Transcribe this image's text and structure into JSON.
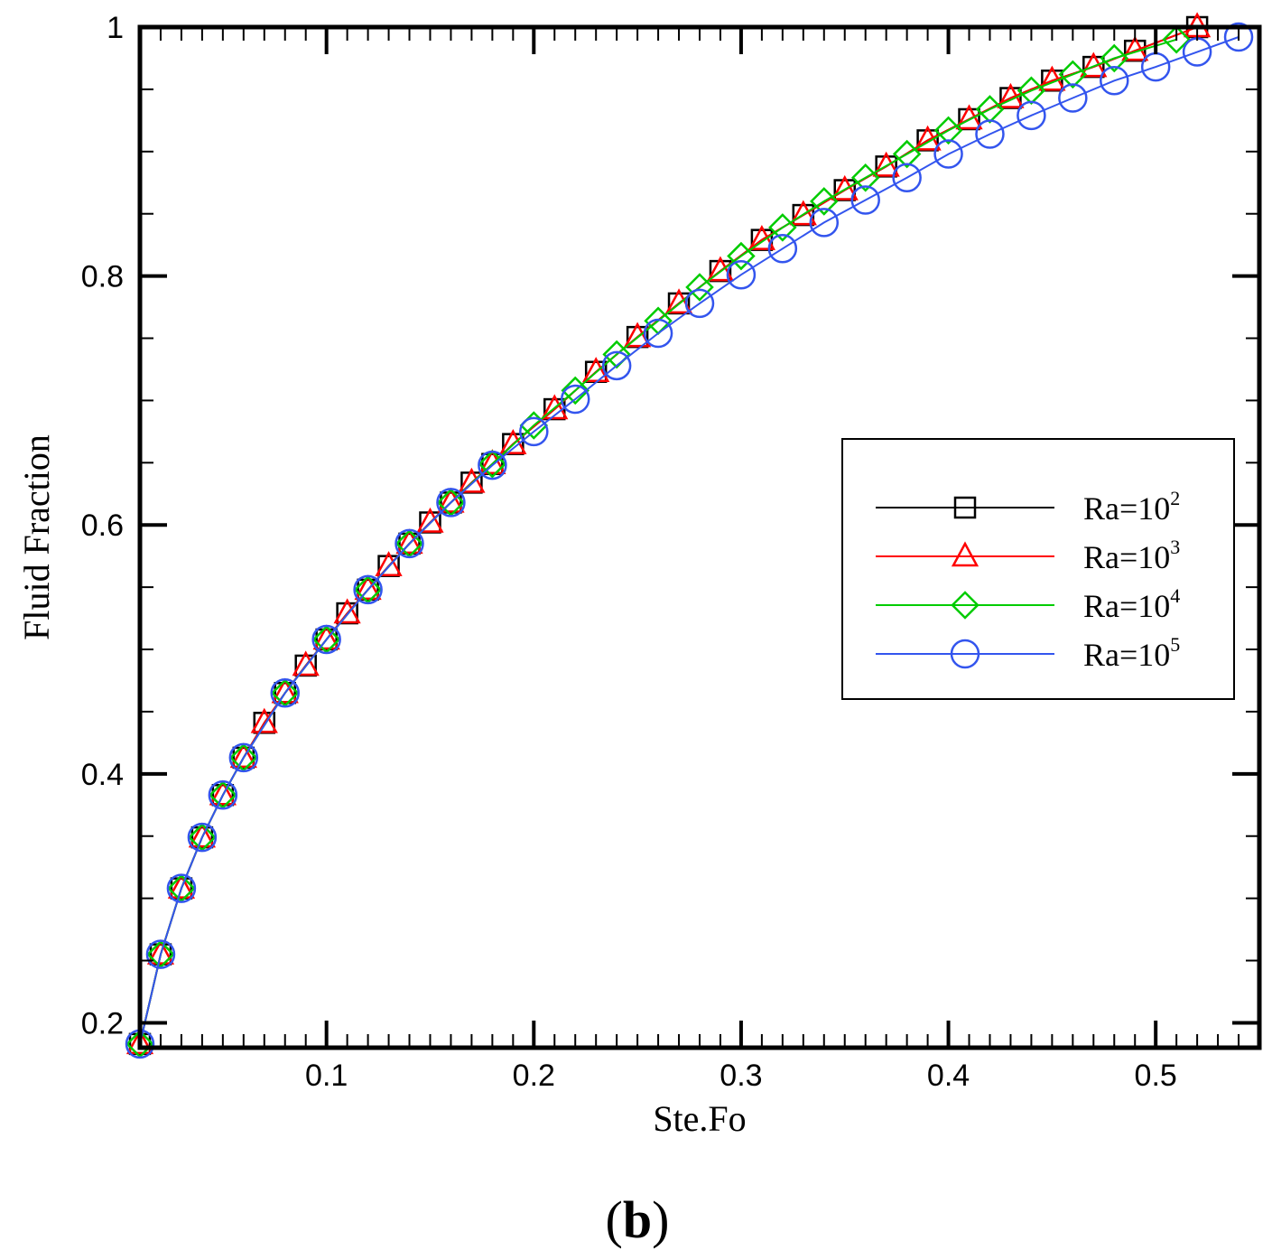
{
  "chart_data": {
    "type": "line",
    "title": "",
    "xlabel": "Ste.Fo",
    "ylabel": "Fluid Fraction",
    "xlim": [
      0.01,
      0.55
    ],
    "ylim": [
      0.18,
      1.0
    ],
    "x_ticks": [
      0.1,
      0.2,
      0.3,
      0.4,
      0.5
    ],
    "x_tick_labels": [
      "0.1",
      "0.2",
      "0.3",
      "0.4",
      "0.5"
    ],
    "y_ticks": [
      0.2,
      0.4,
      0.6,
      0.8,
      1.0
    ],
    "y_tick_labels": [
      "0.2",
      "0.4",
      "0.6",
      "0.8",
      "1"
    ],
    "grid": false,
    "legend_position": "center-right",
    "caption": {
      "open": "(",
      "letter": "b",
      "close": ")"
    },
    "series": [
      {
        "name": "Ra=10^2",
        "label_base": "Ra=10",
        "label_exp": "2",
        "color": "#000000",
        "marker": "square",
        "x": [
          0.01,
          0.02,
          0.03,
          0.04,
          0.05,
          0.06,
          0.07,
          0.08,
          0.09,
          0.1,
          0.11,
          0.12,
          0.13,
          0.14,
          0.15,
          0.16,
          0.17,
          0.18,
          0.19,
          0.21,
          0.23,
          0.25,
          0.27,
          0.29,
          0.31,
          0.33,
          0.35,
          0.37,
          0.39,
          0.41,
          0.43,
          0.45,
          0.47,
          0.49,
          0.52
        ],
        "y": [
          0.183,
          0.255,
          0.308,
          0.349,
          0.383,
          0.413,
          0.441,
          0.465,
          0.487,
          0.508,
          0.529,
          0.548,
          0.567,
          0.585,
          0.602,
          0.618,
          0.634,
          0.649,
          0.665,
          0.693,
          0.723,
          0.751,
          0.778,
          0.804,
          0.829,
          0.849,
          0.869,
          0.888,
          0.909,
          0.926,
          0.943,
          0.957,
          0.968,
          0.981,
          1.0
        ]
      },
      {
        "name": "Ra=10^3",
        "label_base": "Ra=10",
        "label_exp": "3",
        "color": "#ff0000",
        "marker": "triangle",
        "x": [
          0.01,
          0.02,
          0.03,
          0.04,
          0.05,
          0.06,
          0.07,
          0.08,
          0.09,
          0.1,
          0.11,
          0.12,
          0.13,
          0.14,
          0.15,
          0.16,
          0.17,
          0.18,
          0.19,
          0.21,
          0.23,
          0.25,
          0.27,
          0.29,
          0.31,
          0.33,
          0.35,
          0.37,
          0.39,
          0.41,
          0.43,
          0.45,
          0.47,
          0.49,
          0.52
        ],
        "y": [
          0.183,
          0.255,
          0.308,
          0.349,
          0.383,
          0.413,
          0.441,
          0.465,
          0.487,
          0.508,
          0.529,
          0.548,
          0.567,
          0.585,
          0.602,
          0.618,
          0.634,
          0.649,
          0.665,
          0.693,
          0.723,
          0.751,
          0.778,
          0.804,
          0.829,
          0.849,
          0.869,
          0.888,
          0.909,
          0.926,
          0.943,
          0.957,
          0.968,
          0.981,
          1.0
        ]
      },
      {
        "name": "Ra=10^4",
        "label_base": "Ra=10",
        "label_exp": "4",
        "color": "#00cc00",
        "marker": "diamond",
        "x": [
          0.01,
          0.02,
          0.03,
          0.04,
          0.05,
          0.06,
          0.08,
          0.1,
          0.12,
          0.14,
          0.16,
          0.18,
          0.2,
          0.22,
          0.24,
          0.26,
          0.28,
          0.3,
          0.32,
          0.34,
          0.36,
          0.38,
          0.4,
          0.42,
          0.44,
          0.46,
          0.48,
          0.51
        ],
        "y": [
          0.183,
          0.255,
          0.308,
          0.349,
          0.383,
          0.413,
          0.465,
          0.508,
          0.548,
          0.585,
          0.618,
          0.649,
          0.68,
          0.708,
          0.737,
          0.764,
          0.791,
          0.816,
          0.839,
          0.86,
          0.879,
          0.898,
          0.917,
          0.934,
          0.949,
          0.962,
          0.975,
          0.99
        ]
      },
      {
        "name": "Ra=10^5",
        "label_base": "Ra=10",
        "label_exp": "5",
        "color": "#3355ee",
        "marker": "circle",
        "x": [
          0.01,
          0.02,
          0.03,
          0.04,
          0.05,
          0.06,
          0.08,
          0.1,
          0.12,
          0.14,
          0.16,
          0.18,
          0.2,
          0.22,
          0.24,
          0.26,
          0.28,
          0.3,
          0.32,
          0.34,
          0.36,
          0.38,
          0.4,
          0.42,
          0.44,
          0.46,
          0.48,
          0.5,
          0.52,
          0.54
        ],
        "y": [
          0.183,
          0.255,
          0.308,
          0.349,
          0.383,
          0.413,
          0.465,
          0.508,
          0.548,
          0.585,
          0.618,
          0.648,
          0.675,
          0.701,
          0.728,
          0.754,
          0.778,
          0.801,
          0.822,
          0.843,
          0.861,
          0.879,
          0.898,
          0.914,
          0.929,
          0.943,
          0.957,
          0.968,
          0.98,
          0.992
        ]
      }
    ]
  }
}
